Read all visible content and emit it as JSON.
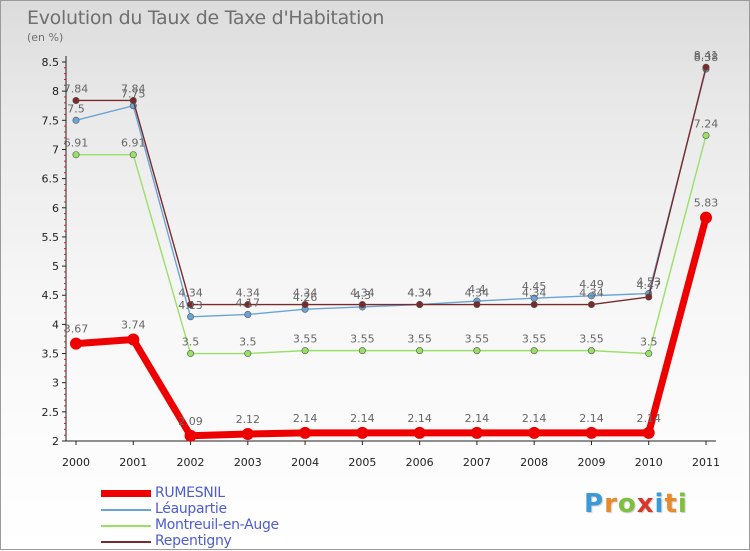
{
  "header": {
    "title": "Evolution du Taux de Taxe d'Habitation",
    "unit": "(en %)"
  },
  "logo": {
    "text": "Proxiti",
    "letter_colors": [
      "#3a9ad9",
      "#e8892a",
      "#7fbf3f",
      "#d9362a",
      "#3a9ad9",
      "#e8892a",
      "#7fbf3f"
    ]
  },
  "chart_data": {
    "type": "line",
    "title": "Evolution du Taux de Taxe d'Habitation",
    "ylabel": "(en %)",
    "xlabel": "",
    "x": [
      "2000",
      "2001",
      "2002",
      "2003",
      "2004",
      "2005",
      "2006",
      "2007",
      "2008",
      "2009",
      "2010",
      "2011"
    ],
    "ylim": [
      2,
      8.5
    ],
    "yticks": [
      "2",
      "2.5",
      "3",
      "3.5",
      "4",
      "4.5",
      "5",
      "5.5",
      "6",
      "6.5",
      "7",
      "7.5",
      "8",
      "8.5"
    ],
    "grid": false,
    "legend_position": "bottom-left",
    "series": [
      {
        "name": "RUMESNIL",
        "color": "#ee0000",
        "values": [
          3.67,
          3.74,
          2.09,
          2.12,
          2.14,
          2.14,
          2.14,
          2.14,
          2.14,
          2.14,
          2.14,
          5.83
        ],
        "labels": [
          "3.67",
          "3.74",
          "2.09",
          "2.12",
          "2.14",
          "2.14",
          "2.14",
          "2.14",
          "2.14",
          "2.14",
          "2.14",
          "5.83"
        ]
      },
      {
        "name": "Léaupartie",
        "color": "#6aa4d6",
        "values": [
          7.5,
          7.75,
          4.13,
          4.17,
          4.26,
          4.3,
          4.34,
          4.4,
          4.45,
          4.49,
          4.53,
          8.38
        ],
        "labels": [
          "7.5",
          "7.75",
          "4.13",
          "4.17",
          "4.26",
          "4.3",
          "4.34",
          "4.4",
          "4.45",
          "4.49",
          "4.53",
          "8.38"
        ]
      },
      {
        "name": "Montreuil-en-Auge",
        "color": "#99e066",
        "values": [
          6.91,
          6.91,
          3.5,
          3.5,
          3.55,
          3.55,
          3.55,
          3.55,
          3.55,
          3.55,
          3.5,
          7.24
        ],
        "labels": [
          "6.91",
          "6.91",
          "3.5",
          "3.5",
          "3.55",
          "3.55",
          "3.55",
          "3.55",
          "3.55",
          "3.55",
          "3.5",
          "7.24"
        ]
      },
      {
        "name": "Repentigny",
        "color": "#7a2a2a",
        "values": [
          7.84,
          7.84,
          4.34,
          4.34,
          4.34,
          4.34,
          4.34,
          4.34,
          4.34,
          4.34,
          4.47,
          8.41
        ],
        "labels": [
          "7.84",
          "7.84",
          "4.34",
          "4.34",
          "4.34",
          "4.34",
          "4.34",
          "4.34",
          "4.34",
          "4.34",
          "4.47",
          "8.41"
        ]
      }
    ]
  }
}
